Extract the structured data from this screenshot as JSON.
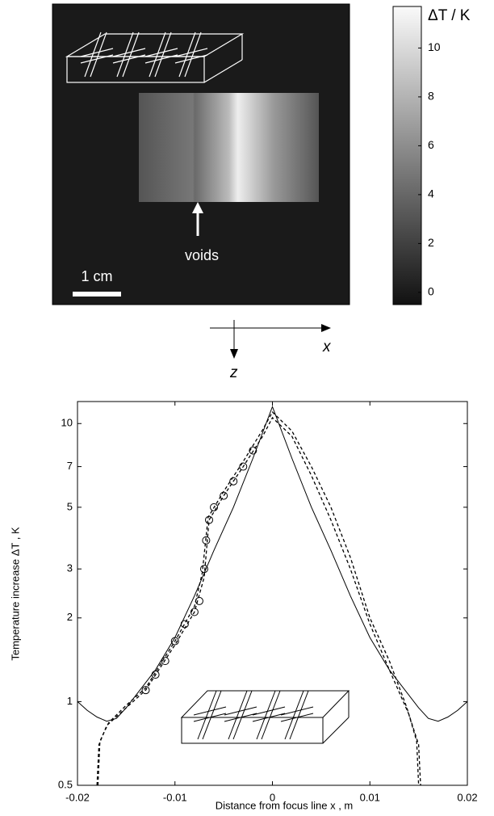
{
  "chart_data": [
    {
      "type": "heatmap",
      "colorbar": {
        "label": "ΔT / K",
        "clim": [
          -0.5,
          11.7
        ],
        "ticks": [
          0,
          2,
          4,
          6,
          8,
          10
        ]
      },
      "annotations": [
        "voids",
        "1 cm"
      ],
      "xlabel": "x",
      "ylabel": "z"
    },
    {
      "type": "line",
      "xlabel": "Distance from focus line x , m",
      "ylabel": "Temperature increase ΔT , K",
      "xlim": [
        -0.02,
        0.02
      ],
      "xticks": [
        -0.02,
        -0.01,
        0,
        0.01,
        0.02
      ],
      "ylim": [
        0.5,
        12
      ],
      "yticks": [
        0.5,
        1,
        2,
        3,
        5,
        7,
        10
      ],
      "log_y": true,
      "series": [
        {
          "style": "solid",
          "color": "#000000",
          "x": [
            -0.02,
            -0.019,
            -0.018,
            -0.017,
            -0.016,
            -0.015,
            -0.012,
            -0.01,
            -0.008,
            -0.006,
            -0.004,
            -0.002,
            0,
            0.002,
            0.004,
            0.006,
            0.008,
            0.01,
            0.012,
            0.015,
            0.016,
            0.017,
            0.018,
            0.019,
            0.02
          ],
          "values": [
            1.0,
            0.93,
            0.88,
            0.85,
            0.87,
            0.95,
            1.3,
            1.7,
            2.4,
            3.5,
            5.0,
            7.5,
            11.5,
            7.5,
            5.0,
            3.5,
            2.4,
            1.7,
            1.3,
            0.95,
            0.87,
            0.85,
            0.88,
            0.93,
            1.0
          ]
        },
        {
          "style": "dashed",
          "color": "#000000",
          "x": [
            -0.018,
            -0.0178,
            -0.017,
            -0.015,
            -0.013,
            -0.01,
            -0.008,
            -0.007,
            -0.0065,
            -0.005,
            -0.003,
            -0.001,
            0,
            0.002,
            0.004,
            0.006,
            0.008,
            0.01,
            0.012,
            0.014,
            0.015,
            0.0152
          ],
          "values": [
            0.5,
            0.7,
            0.82,
            0.95,
            1.1,
            1.6,
            2.1,
            2.8,
            4.5,
            5.5,
            7.0,
            9.0,
            10.5,
            9.0,
            6.5,
            4.5,
            3.0,
            1.9,
            1.3,
            0.9,
            0.7,
            0.5
          ]
        },
        {
          "style": "dashed",
          "color": "#000000",
          "x": [
            -0.0179,
            -0.0177,
            -0.0168,
            -0.015,
            -0.013,
            -0.01,
            -0.008,
            -0.0072,
            -0.0066,
            -0.005,
            -0.003,
            -0.001,
            0,
            0.002,
            0.004,
            0.006,
            0.008,
            0.01,
            0.012,
            0.0138,
            0.0148,
            0.015
          ],
          "values": [
            0.5,
            0.72,
            0.84,
            0.97,
            1.12,
            1.65,
            2.2,
            2.9,
            4.6,
            5.7,
            7.3,
            9.5,
            11.0,
            9.4,
            7.0,
            5.0,
            3.3,
            2.0,
            1.4,
            0.95,
            0.72,
            0.5
          ]
        },
        {
          "style": "markers",
          "color": "#000000",
          "x": [
            -0.013,
            -0.012,
            -0.011,
            -0.01,
            -0.009,
            -0.008,
            -0.0075,
            -0.007,
            -0.0068,
            -0.0065,
            -0.006,
            -0.005,
            -0.004,
            -0.003,
            -0.002
          ],
          "values": [
            1.1,
            1.25,
            1.4,
            1.65,
            1.9,
            2.1,
            2.3,
            3.0,
            3.8,
            4.5,
            5.0,
            5.5,
            6.2,
            7.0,
            8.0
          ]
        }
      ]
    }
  ]
}
